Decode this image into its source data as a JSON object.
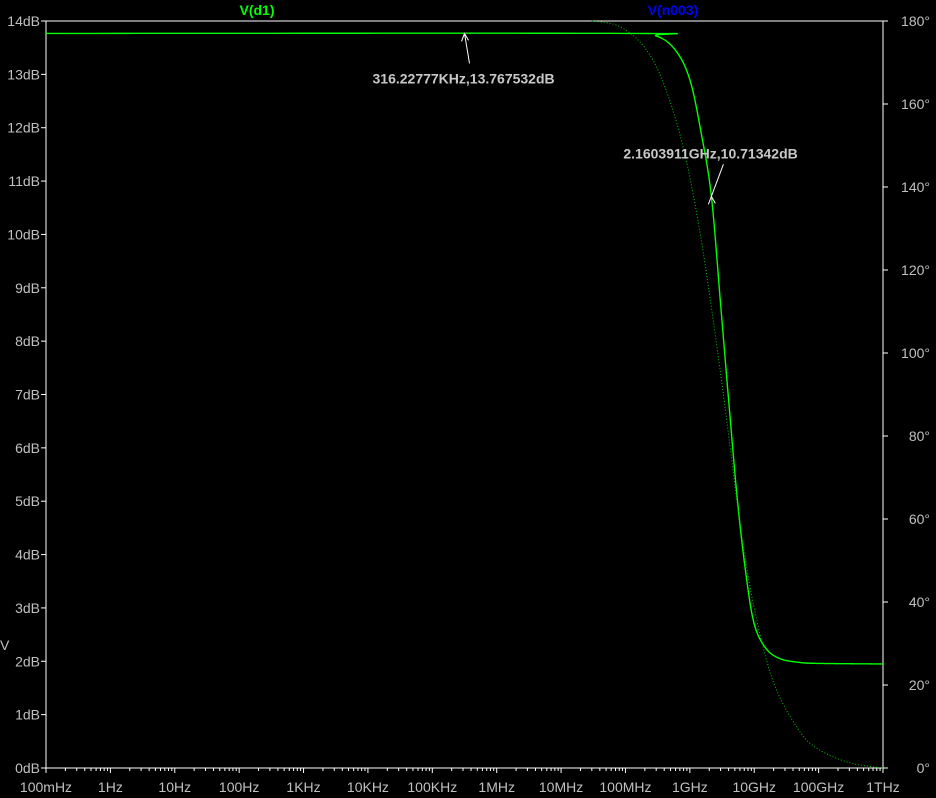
{
  "chart_data": {
    "type": "line",
    "x_scale": "log",
    "xlim": [
      0.1,
      1000000000000
    ],
    "ylim_left": [
      0,
      14
    ],
    "ylim_right": [
      0,
      180
    ],
    "grid": false,
    "x_ticks": [
      {
        "value": 0.1,
        "label": "100mHz"
      },
      {
        "value": 1,
        "label": "1Hz"
      },
      {
        "value": 10,
        "label": "10Hz"
      },
      {
        "value": 100,
        "label": "100Hz"
      },
      {
        "value": 1000,
        "label": "1KHz"
      },
      {
        "value": 10000,
        "label": "10KHz"
      },
      {
        "value": 100000,
        "label": "100KHz"
      },
      {
        "value": 1000000,
        "label": "1MHz"
      },
      {
        "value": 10000000,
        "label": "10MHz"
      },
      {
        "value": 100000000,
        "label": "100MHz"
      },
      {
        "value": 1000000000,
        "label": "1GHz"
      },
      {
        "value": 10000000000,
        "label": "10GHz"
      },
      {
        "value": 100000000000,
        "label": "100GHz"
      },
      {
        "value": 1000000000000,
        "label": "1THz"
      }
    ],
    "y_ticks_left": [
      {
        "value": 0,
        "label": "0dB"
      },
      {
        "value": 1,
        "label": "1dB"
      },
      {
        "value": 2,
        "label": "2dB"
      },
      {
        "value": 3,
        "label": "3dB"
      },
      {
        "value": 4,
        "label": "4dB"
      },
      {
        "value": 5,
        "label": "5dB"
      },
      {
        "value": 6,
        "label": "6dB"
      },
      {
        "value": 7,
        "label": "7dB"
      },
      {
        "value": 8,
        "label": "8dB"
      },
      {
        "value": 9,
        "label": "9dB"
      },
      {
        "value": 10,
        "label": "10dB"
      },
      {
        "value": 11,
        "label": "11dB"
      },
      {
        "value": 12,
        "label": "12dB"
      },
      {
        "value": 13,
        "label": "13dB"
      },
      {
        "value": 14,
        "label": "14dB"
      }
    ],
    "y_ticks_right": [
      {
        "value": 0,
        "label": "0°"
      },
      {
        "value": 20,
        "label": "20°"
      },
      {
        "value": 40,
        "label": "40°"
      },
      {
        "value": 60,
        "label": "60°"
      },
      {
        "value": 80,
        "label": "80°"
      },
      {
        "value": 100,
        "label": "100°"
      },
      {
        "value": 120,
        "label": "120°"
      },
      {
        "value": 140,
        "label": "140°"
      },
      {
        "value": 160,
        "label": "160°"
      },
      {
        "value": 180,
        "label": "180°"
      }
    ],
    "ylabel": "V",
    "series": [
      {
        "name": "V(d1)",
        "color": "#00ff00",
        "legend_color": "#00ff00",
        "style": "solid",
        "axis": "left",
        "points": [
          [
            0.1,
            13.7675
          ],
          [
            100000000,
            13.7675
          ],
          [
            300000000,
            13.72
          ],
          [
            600000000,
            13.45
          ],
          [
            1000000000,
            12.9
          ],
          [
            1500000000,
            11.9
          ],
          [
            2160391100,
            10.71342
          ],
          [
            3000000000,
            8.7
          ],
          [
            4000000000,
            6.9
          ],
          [
            5500000000,
            5.0
          ],
          [
            7500000000,
            3.6
          ],
          [
            10000000000,
            2.7
          ],
          [
            15000000000,
            2.25
          ],
          [
            25000000000,
            2.05
          ],
          [
            50000000000,
            1.98
          ],
          [
            100000000000,
            1.96
          ],
          [
            1000000000000,
            1.95
          ]
        ]
      },
      {
        "name": "V(n003)",
        "color": "#00cc00",
        "legend_color": "#0000ff",
        "style": "dotted",
        "axis": "left",
        "points": [
          [
            30000000,
            14.0
          ],
          [
            80000000,
            13.9
          ],
          [
            200000000,
            13.5
          ],
          [
            400000000,
            12.8
          ],
          [
            800000000,
            11.6
          ],
          [
            1500000000,
            9.9
          ],
          [
            3000000000,
            7.4
          ],
          [
            6000000000,
            4.6
          ],
          [
            10000000000,
            3.0
          ],
          [
            20000000000,
            1.6
          ],
          [
            50000000000,
            0.7
          ],
          [
            100000000000,
            0.35
          ],
          [
            300000000000,
            0.1
          ],
          [
            1000000000000,
            0.0
          ]
        ]
      }
    ],
    "annotations": [
      {
        "name": "cursor-1",
        "x": 316227.77,
        "y": 13.767532,
        "text": "316.22777KHz,13.767532dB"
      },
      {
        "name": "cursor-2",
        "x": 2160391100,
        "y": 10.71342,
        "text": "2.1603911GHz,10.71342dB"
      }
    ]
  }
}
